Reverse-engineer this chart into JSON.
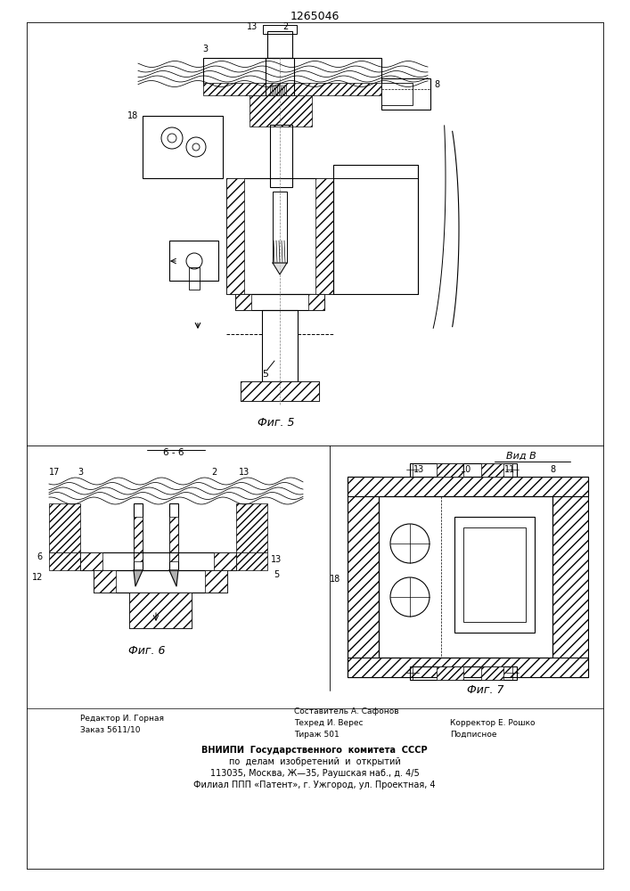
{
  "patent_number": "1265046",
  "background_color": "#ffffff",
  "line_color": "#000000",
  "fig_width": 7.07,
  "fig_height": 10.0,
  "fig5_label": "Фиг. 5",
  "fig6_label": "Фиг. 6",
  "fig7_label": "Фиг. 7",
  "vidb_label": "Вид В",
  "bb_label": "6 - 6",
  "footer_editor": "Редактор И. Горная",
  "footer_order": "Заказ 5611/10",
  "footer_composer": "Составитель А. Сафонов",
  "footer_techred": "Техред И. Верес",
  "footer_tirazh": "Тираж 501",
  "footer_corrector": "Корректор Е. Рошко",
  "footer_podpisnoe": "Подписное",
  "footer_vniip1": "ВНИИПИ  Государственного  комитета  СССР",
  "footer_vniip2": "по  делам  изобретений  и  открытий",
  "footer_addr1": "113035, Москва, Ж—35, Раушская наб., д. 4/5",
  "footer_addr2": "Филиал ППП «Патент», г. Ужгород, ул. Проектная, 4"
}
